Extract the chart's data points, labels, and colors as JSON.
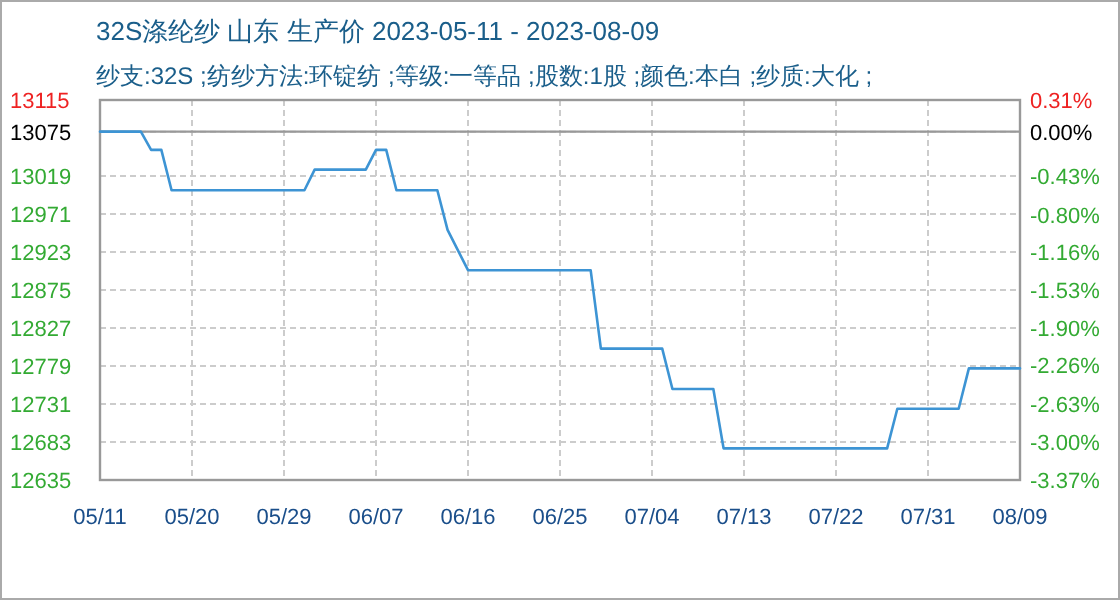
{
  "chart_data": {
    "type": "line",
    "title": "32S涤纶纱 山东 生产价 2023-05-11 - 2023-08-09",
    "subtitle": "纱支:32S ;纺纱方法:环锭纺 ;等级:一等品 ;股数:1股 ;颜色:本白 ;纱质:大化 ;",
    "x": [
      "2023-05-11",
      "2023-05-15",
      "2023-05-16",
      "2023-05-17",
      "2023-05-18",
      "2023-05-31",
      "2023-06-01",
      "2023-06-06",
      "2023-06-07",
      "2023-06-08",
      "2023-06-09",
      "2023-06-13",
      "2023-06-14",
      "2023-06-16",
      "2023-06-28",
      "2023-06-29",
      "2023-07-05",
      "2023-07-06",
      "2023-07-10",
      "2023-07-11",
      "2023-07-27",
      "2023-07-28",
      "2023-08-03",
      "2023-08-04",
      "2023-08-09"
    ],
    "series": [
      {
        "color": "#3d94d4",
        "values": [
          13075,
          13075,
          13052,
          13052,
          13001,
          13001,
          13027,
          13027,
          13052,
          13052,
          13001,
          13001,
          12951,
          12900,
          12900,
          12801,
          12801,
          12750,
          12750,
          12675,
          12675,
          12725,
          12725,
          12776,
          12776
        ]
      }
    ],
    "xlim": [
      "2023-05-11",
      "2023-08-09"
    ],
    "xticks": [
      {
        "value": "2023-05-11",
        "label": "05/11"
      },
      {
        "value": "2023-05-20",
        "label": "05/20"
      },
      {
        "value": "2023-05-29",
        "label": "05/29"
      },
      {
        "value": "2023-06-07",
        "label": "06/07"
      },
      {
        "value": "2023-06-16",
        "label": "06/16"
      },
      {
        "value": "2023-06-25",
        "label": "06/25"
      },
      {
        "value": "2023-07-04",
        "label": "07/04"
      },
      {
        "value": "2023-07-13",
        "label": "07/13"
      },
      {
        "value": "2023-07-22",
        "label": "07/22"
      },
      {
        "value": "2023-07-31",
        "label": "07/31"
      },
      {
        "value": "2023-08-09",
        "label": "08/09"
      }
    ],
    "ylim": [
      12635,
      13115
    ],
    "yticks": [
      13115,
      13075,
      13019,
      12971,
      12923,
      12875,
      12827,
      12779,
      12731,
      12683,
      12635
    ],
    "y2lim": [
      -3.37,
      0.31
    ],
    "y2ticks": [
      {
        "value": 0.31,
        "label": "0.31%"
      },
      {
        "value": 0,
        "label": "0.00%"
      },
      {
        "value": -0.43,
        "label": "-0.43%"
      },
      {
        "value": -0.8,
        "label": "-0.80%"
      },
      {
        "value": -1.16,
        "label": "-1.16%"
      },
      {
        "value": -1.53,
        "label": "-1.53%"
      },
      {
        "value": -1.9,
        "label": "-1.90%"
      },
      {
        "value": -2.26,
        "label": "-2.26%"
      },
      {
        "value": -2.63,
        "label": "-2.63%"
      },
      {
        "value": -3,
        "label": "-3.00%"
      },
      {
        "value": -3.37,
        "label": "-3.37%"
      }
    ],
    "grid": true,
    "ref_lines": [
      {
        "axis": "y",
        "value": 13075,
        "color": "#999999"
      }
    ]
  }
}
